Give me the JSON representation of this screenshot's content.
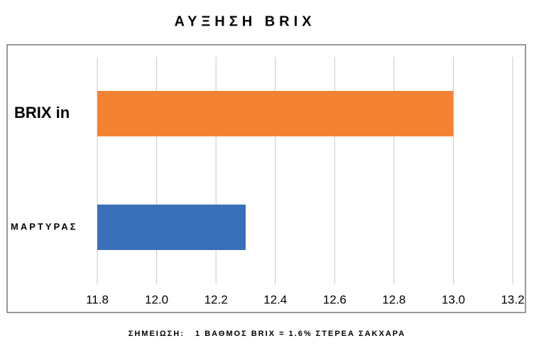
{
  "chart_data": {
    "type": "hbar",
    "title": "ΑΥΞΗΣΗ BRIX",
    "categories": [
      "BRIX in",
      "ΜΑΡΤΥΡΑΣ"
    ],
    "values": [
      13.0,
      12.3
    ],
    "colors": [
      "#f58232",
      "#3a70b8"
    ],
    "xlim": [
      11.8,
      13.2
    ],
    "xticks": [
      11.8,
      {
        "value": 12,
        "label": "12.0"
      },
      12.2,
      12.4,
      12.6,
      12.8,
      {
        "value": 13,
        "label": "13.0"
      },
      13.2
    ],
    "grid": true,
    "note": "ΣΗΜΕΙΩΣΗ:   1 ΒΑΘΜΟΣ BRIX = 1.6% ΣΤΕΡΕΑ ΣΑΚΧΑΡΑ"
  }
}
